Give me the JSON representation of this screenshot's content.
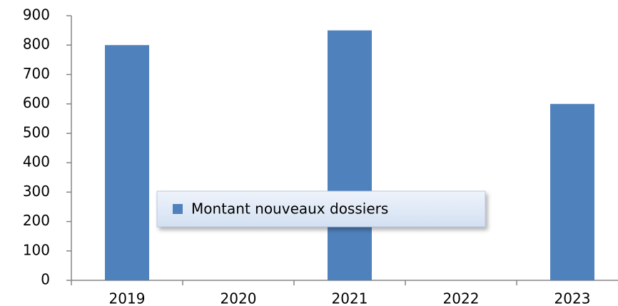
{
  "chart_data": {
    "type": "bar",
    "categories": [
      "2019",
      "2020",
      "2021",
      "2022",
      "2023"
    ],
    "series": [
      {
        "name": "Montant nouveaux dossiers",
        "color": "#4f81bd",
        "values": [
          800,
          0,
          850,
          0,
          600
        ]
      }
    ],
    "ylim": [
      0,
      900
    ],
    "yticks": [
      0,
      100,
      200,
      300,
      400,
      500,
      600,
      700,
      800,
      900
    ],
    "grid": false,
    "legend": "center"
  }
}
